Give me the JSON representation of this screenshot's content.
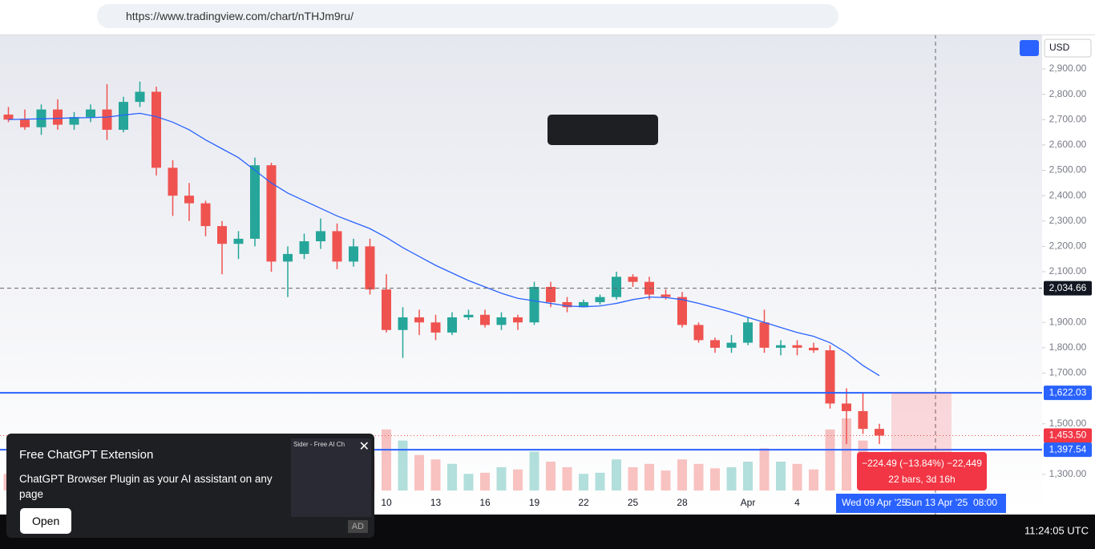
{
  "browser": {
    "url": "https://www.tradingview.com/chart/nTHJm9ru/"
  },
  "toolbar": {
    "currency": "USD"
  },
  "chart_data": {
    "type": "candlestick",
    "categories": [
      null,
      null,
      null,
      null,
      null,
      null,
      null,
      null,
      null,
      null,
      null,
      null,
      null,
      null,
      null,
      null,
      null,
      null,
      null,
      null,
      null,
      null,
      null,
      "10",
      null,
      null,
      "13",
      null,
      null,
      "16",
      null,
      null,
      "19",
      null,
      null,
      "22",
      null,
      null,
      "25",
      null,
      null,
      "28",
      null,
      null,
      null,
      "Apr",
      null,
      null,
      "4",
      null,
      null,
      null,
      null,
      null
    ],
    "ohlc": [
      [
        2720,
        2750,
        2690,
        2700
      ],
      [
        2700,
        2740,
        2660,
        2670
      ],
      [
        2670,
        2760,
        2640,
        2740
      ],
      [
        2740,
        2780,
        2660,
        2680
      ],
      [
        2680,
        2730,
        2660,
        2710
      ],
      [
        2710,
        2760,
        2690,
        2740
      ],
      [
        2740,
        2840,
        2620,
        2660
      ],
      [
        2660,
        2790,
        2650,
        2770
      ],
      [
        2770,
        2850,
        2750,
        2810
      ],
      [
        2810,
        2830,
        2480,
        2510
      ],
      [
        2510,
        2540,
        2320,
        2400
      ],
      [
        2400,
        2450,
        2300,
        2370
      ],
      [
        2370,
        2380,
        2240,
        2280
      ],
      [
        2280,
        2300,
        2090,
        2210
      ],
      [
        2210,
        2260,
        2150,
        2230
      ],
      [
        2230,
        2550,
        2200,
        2520
      ],
      [
        2520,
        2530,
        2100,
        2140
      ],
      [
        2140,
        2200,
        2000,
        2170
      ],
      [
        2170,
        2250,
        2150,
        2220
      ],
      [
        2220,
        2310,
        2190,
        2260
      ],
      [
        2260,
        2290,
        2110,
        2140
      ],
      [
        2140,
        2230,
        2120,
        2200
      ],
      [
        2200,
        2230,
        2010,
        2030
      ],
      [
        2030,
        2090,
        1860,
        1870
      ],
      [
        1870,
        1960,
        1760,
        1920
      ],
      [
        1920,
        1950,
        1850,
        1900
      ],
      [
        1900,
        1930,
        1830,
        1860
      ],
      [
        1860,
        1940,
        1850,
        1920
      ],
      [
        1920,
        1950,
        1910,
        1930
      ],
      [
        1930,
        1950,
        1880,
        1890
      ],
      [
        1890,
        1940,
        1870,
        1920
      ],
      [
        1920,
        1930,
        1870,
        1900
      ],
      [
        1900,
        2060,
        1890,
        2040
      ],
      [
        2040,
        2060,
        1960,
        1980
      ],
      [
        1980,
        2000,
        1940,
        1960
      ],
      [
        1960,
        1990,
        1960,
        1980
      ],
      [
        1980,
        2010,
        1970,
        2000
      ],
      [
        2000,
        2100,
        1990,
        2080
      ],
      [
        2080,
        2090,
        2040,
        2060
      ],
      [
        2060,
        2080,
        1990,
        2010
      ],
      [
        2010,
        2030,
        1990,
        2000
      ],
      [
        2000,
        2020,
        1880,
        1890
      ],
      [
        1890,
        1900,
        1820,
        1830
      ],
      [
        1830,
        1840,
        1780,
        1800
      ],
      [
        1800,
        1850,
        1780,
        1820
      ],
      [
        1820,
        1920,
        1810,
        1900
      ],
      [
        1900,
        1950,
        1780,
        1800
      ],
      [
        1800,
        1830,
        1770,
        1810
      ],
      [
        1810,
        1830,
        1770,
        1800
      ],
      [
        1800,
        1820,
        1780,
        1790
      ],
      [
        1790,
        1810,
        1560,
        1580
      ],
      [
        1580,
        1640,
        1420,
        1550
      ],
      [
        1550,
        1620,
        1460,
        1480
      ],
      [
        1480,
        1500,
        1420,
        1453.5
      ]
    ],
    "volume": [
      300,
      280,
      350,
      320,
      260,
      300,
      600,
      420,
      380,
      900,
      700,
      520,
      560,
      640,
      380,
      1000,
      820,
      700,
      520,
      480,
      560,
      400,
      620,
      1100,
      900,
      640,
      560,
      480,
      300,
      320,
      420,
      380,
      700,
      520,
      420,
      300,
      320,
      560,
      420,
      480,
      360,
      560,
      480,
      400,
      420,
      520,
      760,
      520,
      480,
      380,
      1100,
      1300,
      900,
      500
    ],
    "ma": [
      2700,
      2702,
      2703,
      2705,
      2707,
      2708,
      2710,
      2718,
      2725,
      2712,
      2690,
      2660,
      2620,
      2585,
      2550,
      2500,
      2450,
      2410,
      2380,
      2350,
      2320,
      2295,
      2270,
      2235,
      2195,
      2160,
      2125,
      2095,
      2065,
      2040,
      2015,
      1995,
      1985,
      1975,
      1965,
      1962,
      1965,
      1975,
      1990,
      2000,
      1998,
      1990,
      1975,
      1958,
      1940,
      1920,
      1900,
      1880,
      1860,
      1845,
      1820,
      1780,
      1730,
      1690
    ],
    "up_color": "#26a69a",
    "down_color": "#ef5350",
    "ma_color": "#2962ff",
    "ylim": [
      1142,
      3036
    ],
    "yticks": [
      {
        "value": 2900,
        "label": "2,900.00"
      },
      {
        "value": 2800,
        "label": "2,800.00"
      },
      {
        "value": 2700,
        "label": "2,700.00"
      },
      {
        "value": 2600,
        "label": "2,600.00"
      },
      {
        "value": 2500,
        "label": "2,500.00"
      },
      {
        "value": 2400,
        "label": "2,400.00"
      },
      {
        "value": 2300,
        "label": "2,300.00"
      },
      {
        "value": 2200,
        "label": "2,200.00"
      },
      {
        "value": 2100,
        "label": "2,100.00"
      },
      {
        "value": 1900,
        "label": "1,900.00"
      },
      {
        "value": 1800,
        "label": "1,800.00"
      },
      {
        "value": 1700,
        "label": "1,700.00"
      },
      {
        "value": 1500,
        "label": "1,500.00"
      },
      {
        "value": 1300,
        "label": "1,300.00"
      }
    ]
  },
  "price_labels": {
    "crosshair": {
      "value": 2034.66,
      "label": "2,034.66"
    },
    "upper_line": {
      "value": 1622.03,
      "label": "1,622.03"
    },
    "current": {
      "value": 1453.5,
      "label": "1,453.50"
    },
    "lower_line": {
      "value": 1397.54,
      "label": "1,397.54"
    }
  },
  "measure": {
    "change": "−224.49 (−13.84%) −22,449",
    "span": "22 bars, 3d 16h"
  },
  "time_labels": {
    "start": "Wed 09 Apr '25",
    "end": "Sun 13 Apr '25",
    "time": "08:00"
  },
  "clock": "11:24:05 UTC",
  "ad": {
    "title": "Free ChatGPT Extension",
    "text": "ChatGPT Browser Plugin as your AI assistant on any page",
    "button": "Open",
    "badge": "AD",
    "preview": "Sider - Free AI Ch"
  }
}
